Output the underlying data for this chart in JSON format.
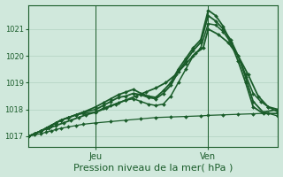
{
  "bg_color": "#d0e8dc",
  "grid_color_major": "#aaccbb",
  "grid_color_minor": "#c0ddd0",
  "line_color": "#1a5c2a",
  "marker_color": "#1a5c2a",
  "xlabel": "Pression niveau de la mer( hPa )",
  "xlabel_fontsize": 8,
  "ytick_fontsize": 6,
  "xtick_fontsize": 7,
  "yticks": [
    1017,
    1018,
    1019,
    1020,
    1021
  ],
  "ylim": [
    1016.6,
    1021.9
  ],
  "xlim": [
    0.0,
    1.0
  ],
  "xtick_labels": [
    "Jeu",
    "Ven"
  ],
  "xtick_positions": [
    0.27,
    0.72
  ],
  "series": [
    {
      "x": [
        0.0,
        0.025,
        0.05,
        0.07,
        0.09,
        0.11,
        0.13,
        0.16,
        0.19,
        0.22,
        0.27,
        0.33,
        0.39,
        0.45,
        0.51,
        0.57,
        0.63,
        0.69,
        0.72,
        0.78,
        0.84,
        0.9,
        0.96,
        1.0
      ],
      "y": [
        1017.0,
        1017.05,
        1017.1,
        1017.15,
        1017.2,
        1017.25,
        1017.3,
        1017.35,
        1017.4,
        1017.45,
        1017.5,
        1017.55,
        1017.6,
        1017.65,
        1017.7,
        1017.72,
        1017.74,
        1017.76,
        1017.78,
        1017.8,
        1017.82,
        1017.84,
        1017.86,
        1017.75
      ],
      "lw": 0.9,
      "marker": "D",
      "ms": 2.0
    },
    {
      "x": [
        0.0,
        0.025,
        0.05,
        0.07,
        0.09,
        0.11,
        0.13,
        0.16,
        0.19,
        0.22,
        0.27,
        0.3,
        0.33,
        0.36,
        0.39,
        0.42,
        0.45,
        0.48,
        0.51,
        0.54,
        0.57,
        0.6,
        0.63,
        0.66,
        0.69,
        0.72,
        0.75,
        0.78,
        0.81,
        0.84,
        0.87,
        0.9,
        0.93,
        0.96,
        1.0
      ],
      "y": [
        1017.0,
        1017.1,
        1017.2,
        1017.3,
        1017.4,
        1017.5,
        1017.6,
        1017.7,
        1017.8,
        1017.85,
        1017.9,
        1018.05,
        1018.15,
        1018.25,
        1018.35,
        1018.4,
        1018.3,
        1018.2,
        1018.15,
        1018.2,
        1018.5,
        1019.0,
        1019.5,
        1020.0,
        1020.3,
        1021.2,
        1021.15,
        1020.9,
        1020.5,
        1020.0,
        1019.3,
        1018.6,
        1018.3,
        1018.1,
        1017.9
      ],
      "lw": 1.1,
      "marker": "D",
      "ms": 2.0
    },
    {
      "x": [
        0.0,
        0.025,
        0.05,
        0.07,
        0.09,
        0.11,
        0.13,
        0.16,
        0.19,
        0.22,
        0.27,
        0.3,
        0.33,
        0.36,
        0.39,
        0.42,
        0.45,
        0.48,
        0.51,
        0.54,
        0.57,
        0.6,
        0.63,
        0.66,
        0.69,
        0.72,
        0.75,
        0.78,
        0.81,
        0.84,
        0.87,
        0.9,
        0.94,
        1.0
      ],
      "y": [
        1017.0,
        1017.1,
        1017.2,
        1017.3,
        1017.4,
        1017.5,
        1017.6,
        1017.7,
        1017.8,
        1017.9,
        1018.0,
        1018.15,
        1018.3,
        1018.45,
        1018.5,
        1018.6,
        1018.55,
        1018.45,
        1018.4,
        1018.6,
        1018.9,
        1019.4,
        1019.8,
        1020.2,
        1020.5,
        1021.5,
        1021.3,
        1021.0,
        1020.6,
        1020.0,
        1019.2,
        1018.3,
        1017.9,
        1018.0
      ],
      "lw": 1.3,
      "marker": "D",
      "ms": 2.0
    },
    {
      "x": [
        0.0,
        0.025,
        0.05,
        0.07,
        0.09,
        0.11,
        0.13,
        0.16,
        0.19,
        0.22,
        0.27,
        0.3,
        0.33,
        0.36,
        0.39,
        0.42,
        0.45,
        0.48,
        0.51,
        0.54,
        0.57,
        0.6,
        0.63,
        0.66,
        0.69,
        0.72,
        0.75,
        0.78,
        0.81,
        0.84,
        0.87,
        0.9,
        0.94,
        1.0
      ],
      "y": [
        1017.0,
        1017.1,
        1017.2,
        1017.3,
        1017.4,
        1017.5,
        1017.6,
        1017.7,
        1017.8,
        1017.9,
        1018.1,
        1018.25,
        1018.4,
        1018.55,
        1018.65,
        1018.75,
        1018.6,
        1018.5,
        1018.45,
        1018.7,
        1019.0,
        1019.5,
        1019.9,
        1020.3,
        1020.6,
        1021.7,
        1021.5,
        1021.1,
        1020.5,
        1019.8,
        1019.0,
        1018.1,
        1017.85,
        1017.85
      ],
      "lw": 1.3,
      "marker": "D",
      "ms": 2.0
    },
    {
      "x": [
        0.0,
        0.025,
        0.05,
        0.08,
        0.11,
        0.14,
        0.17,
        0.2,
        0.23,
        0.27,
        0.31,
        0.35,
        0.39,
        0.43,
        0.47,
        0.51,
        0.55,
        0.59,
        0.63,
        0.67,
        0.7,
        0.72,
        0.76,
        0.8,
        0.84,
        0.88,
        0.92,
        0.96,
        1.0
      ],
      "y": [
        1017.0,
        1017.1,
        1017.2,
        1017.3,
        1017.4,
        1017.5,
        1017.6,
        1017.7,
        1017.8,
        1017.9,
        1018.05,
        1018.2,
        1018.35,
        1018.5,
        1018.65,
        1018.8,
        1019.0,
        1019.3,
        1019.7,
        1020.1,
        1020.3,
        1021.0,
        1020.8,
        1020.5,
        1020.0,
        1019.3,
        1018.5,
        1018.1,
        1018.0
      ],
      "lw": 1.3,
      "marker": "D",
      "ms": 2.0
    }
  ]
}
